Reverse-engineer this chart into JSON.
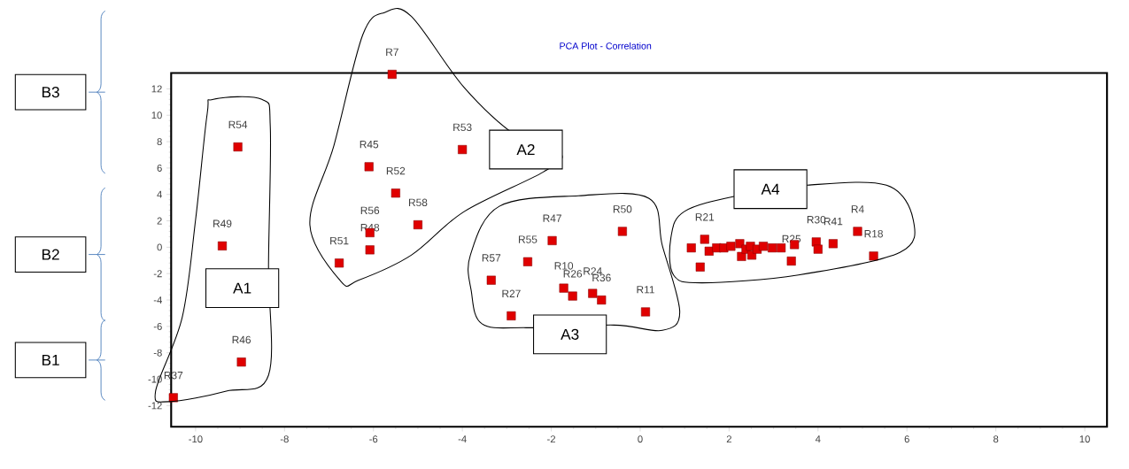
{
  "chart_data": {
    "type": "scatter",
    "title": "PCA Plot - Correlation",
    "x": [
      -5.58,
      -9.05,
      -9.4,
      -8.97,
      -10.5,
      -6.1,
      -5.5,
      -4.0,
      -5.0,
      -6.08,
      -6.08,
      -6.77,
      -1.98,
      -0.4,
      -2.53,
      -3.35,
      -2.9,
      -1.72,
      -1.52,
      -1.07,
      -0.87,
      0.12,
      1.15,
      1.35,
      1.45,
      1.55,
      1.72,
      1.88,
      2.04,
      2.24,
      2.28,
      2.38,
      2.48,
      2.51,
      2.63,
      2.77,
      2.97,
      3.17,
      3.4,
      3.47,
      3.96,
      4.0,
      4.34,
      4.89,
      5.25
    ],
    "values": [
      13.1,
      7.6,
      0.1,
      -8.7,
      -11.4,
      6.1,
      4.1,
      7.4,
      1.7,
      1.1,
      -0.2,
      -1.2,
      0.5,
      1.2,
      -1.1,
      -2.5,
      -5.2,
      -3.1,
      -3.7,
      -3.5,
      -4.0,
      -4.9,
      -0.05,
      -1.5,
      0.6,
      -0.3,
      -0.05,
      -0.05,
      0.07,
      0.27,
      -0.7,
      -0.15,
      0.07,
      -0.6,
      -0.15,
      0.07,
      -0.05,
      -0.05,
      -1.05,
      0.2,
      0.4,
      -0.15,
      0.27,
      1.2,
      -0.67
    ],
    "value_labels": [
      "R7",
      "R54",
      "R49",
      "R46",
      "R37",
      "R45",
      "R52",
      "R53",
      "R58",
      "R56",
      "R48",
      "R51",
      "R47",
      "R50",
      "R55",
      "R57",
      "R27",
      "R10",
      "R26",
      "R24",
      "R36",
      "R11",
      null,
      null,
      "R21",
      null,
      null,
      null,
      null,
      null,
      null,
      null,
      null,
      null,
      null,
      null,
      null,
      null,
      "R25",
      null,
      "R30",
      null,
      "R41",
      "R4",
      "R18"
    ],
    "color": "#e00000",
    "marker": "square",
    "xlim": [
      -10.55,
      10.5
    ],
    "ylim": [
      -13.6,
      13.2
    ],
    "xticks": [
      -10,
      -8,
      -6,
      -4,
      -2,
      0,
      2,
      4,
      6,
      8,
      10
    ],
    "yticks": [
      -12,
      -10,
      -8,
      -6,
      -4,
      -2,
      0,
      2,
      4,
      6,
      8,
      10,
      12
    ],
    "annotations": [
      "A1",
      "A2",
      "A3",
      "A4",
      "B1",
      "B2",
      "B3"
    ]
  }
}
